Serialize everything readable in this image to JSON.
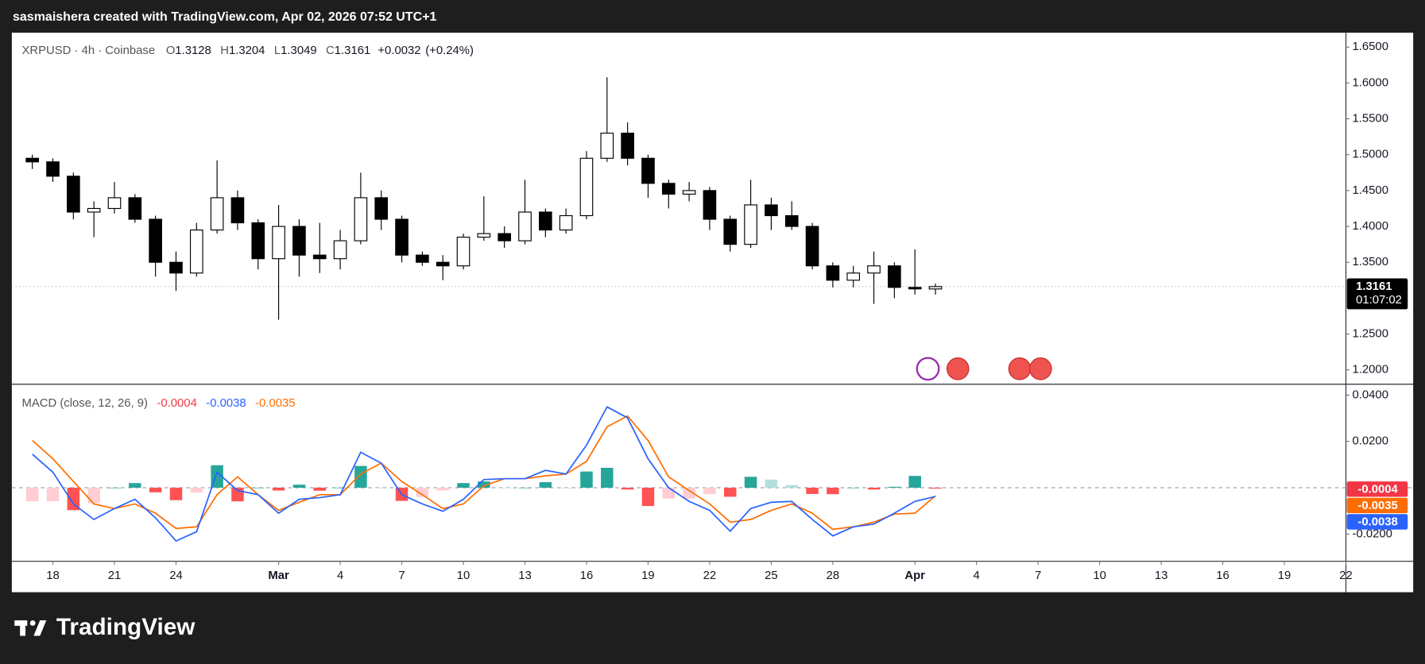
{
  "header": {
    "attribution": "sasmaishera created with TradingView.com, Apr 02, 2026 07:52 UTC+1",
    "logo": "TradingView"
  },
  "chart_data": [
    {
      "type": "candlestick",
      "title": "XRPUSD · 4h · Coinbase",
      "ohlc_labels": [
        "O",
        "H",
        "L",
        "C"
      ],
      "change": "+0.0032",
      "change_pct": "(+0.24%)",
      "countdown": "01:07:02",
      "x": [
        "2026-02-17",
        "2026-02-18",
        "2026-02-19",
        "2026-02-20",
        "2026-02-21",
        "2026-02-22",
        "2026-02-23",
        "2026-02-24",
        "2026-02-25",
        "2026-02-26",
        "2026-02-27",
        "2026-02-28",
        "2026-03-01",
        "2026-03-02",
        "2026-03-03",
        "2026-03-04",
        "2026-03-05",
        "2026-03-06",
        "2026-03-07",
        "2026-03-08",
        "2026-03-09",
        "2026-03-10",
        "2026-03-11",
        "2026-03-12",
        "2026-03-13",
        "2026-03-14",
        "2026-03-15",
        "2026-03-16",
        "2026-03-17",
        "2026-03-18",
        "2026-03-19",
        "2026-03-20",
        "2026-03-21",
        "2026-03-22",
        "2026-03-23",
        "2026-03-24",
        "2026-03-25",
        "2026-03-26",
        "2026-03-27",
        "2026-03-28",
        "2026-03-29",
        "2026-03-30",
        "2026-03-31",
        "2026-04-01",
        "2026-04-02"
      ],
      "open": [
        1.495,
        1.49,
        1.47,
        1.42,
        1.425,
        1.44,
        1.41,
        1.35,
        1.335,
        1.395,
        1.44,
        1.405,
        1.355,
        1.4,
        1.36,
        1.355,
        1.38,
        1.44,
        1.41,
        1.36,
        1.35,
        1.345,
        1.385,
        1.39,
        1.38,
        1.42,
        1.395,
        1.415,
        1.495,
        1.53,
        1.495,
        1.46,
        1.445,
        1.45,
        1.41,
        1.375,
        1.43,
        1.415,
        1.4,
        1.345,
        1.325,
        1.335,
        1.345,
        1.315,
        1.3128
      ],
      "high": [
        1.5,
        1.495,
        1.475,
        1.435,
        1.462,
        1.445,
        1.415,
        1.365,
        1.405,
        1.492,
        1.45,
        1.41,
        1.43,
        1.41,
        1.405,
        1.395,
        1.475,
        1.45,
        1.415,
        1.365,
        1.36,
        1.39,
        1.442,
        1.4,
        1.465,
        1.425,
        1.425,
        1.505,
        1.608,
        1.545,
        1.5,
        1.465,
        1.462,
        1.455,
        1.415,
        1.465,
        1.44,
        1.435,
        1.405,
        1.35,
        1.345,
        1.365,
        1.35,
        1.368,
        1.3204
      ],
      "low": [
        1.48,
        1.462,
        1.41,
        1.385,
        1.418,
        1.405,
        1.33,
        1.31,
        1.33,
        1.39,
        1.395,
        1.34,
        1.27,
        1.33,
        1.335,
        1.34,
        1.375,
        1.395,
        1.35,
        1.345,
        1.325,
        1.34,
        1.38,
        1.37,
        1.375,
        1.385,
        1.39,
        1.41,
        1.49,
        1.485,
        1.44,
        1.425,
        1.435,
        1.395,
        1.365,
        1.37,
        1.395,
        1.395,
        1.34,
        1.315,
        1.315,
        1.292,
        1.3,
        1.305,
        1.3049
      ],
      "close": [
        1.49,
        1.47,
        1.42,
        1.425,
        1.44,
        1.41,
        1.35,
        1.335,
        1.395,
        1.44,
        1.405,
        1.355,
        1.4,
        1.36,
        1.355,
        1.38,
        1.44,
        1.41,
        1.36,
        1.35,
        1.345,
        1.385,
        1.39,
        1.38,
        1.42,
        1.395,
        1.415,
        1.495,
        1.53,
        1.495,
        1.46,
        1.445,
        1.45,
        1.41,
        1.375,
        1.43,
        1.415,
        1.4,
        1.345,
        1.325,
        1.335,
        1.345,
        1.315,
        1.3129,
        1.3161
      ],
      "up_color": "#ffffff",
      "down_color": "#000000",
      "wick_color": "#000000",
      "ylim": [
        1.18,
        1.67
      ],
      "yticks": [
        {
          "value": 1.2,
          "label": "1.2000"
        },
        {
          "value": 1.25,
          "label": "1.2500"
        },
        {
          "value": 1.35,
          "label": "1.3500"
        },
        {
          "value": 1.4,
          "label": "1.4000"
        },
        {
          "value": 1.45,
          "label": "1.4500"
        },
        {
          "value": 1.5,
          "label": "1.5000"
        },
        {
          "value": 1.55,
          "label": "1.5500"
        },
        {
          "value": 1.6,
          "label": "1.6000"
        },
        {
          "value": 1.65,
          "label": "1.6500"
        }
      ],
      "xlim": [
        "2026-02-16",
        "2026-04-22"
      ],
      "xticks": [
        {
          "value": "2026-02-18",
          "label": "18"
        },
        {
          "value": "2026-02-21",
          "label": "21"
        },
        {
          "value": "2026-02-24",
          "label": "24"
        },
        {
          "value": "2026-03-01",
          "label": "Mar"
        },
        {
          "value": "2026-03-04",
          "label": "4"
        },
        {
          "value": "2026-03-07",
          "label": "7"
        },
        {
          "value": "2026-03-10",
          "label": "10"
        },
        {
          "value": "2026-03-13",
          "label": "13"
        },
        {
          "value": "2026-03-16",
          "label": "16"
        },
        {
          "value": "2026-03-19",
          "label": "19"
        },
        {
          "value": "2026-03-22",
          "label": "22"
        },
        {
          "value": "2026-03-25",
          "label": "25"
        },
        {
          "value": "2026-03-28",
          "label": "28"
        },
        {
          "value": "2026-04-01",
          "label": "Apr"
        },
        {
          "value": "2026-04-04",
          "label": "4"
        },
        {
          "value": "2026-04-07",
          "label": "7"
        },
        {
          "value": "2026-04-10",
          "label": "10"
        },
        {
          "value": "2026-04-13",
          "label": "13"
        },
        {
          "value": "2026-04-16",
          "label": "16"
        },
        {
          "value": "2026-04-19",
          "label": "19"
        },
        {
          "value": "2026-04-22",
          "label": "22"
        }
      ]
    },
    {
      "type": "macd",
      "title": "MACD (close, 12, 26, 9)",
      "x": [
        "2026-02-17",
        "2026-02-18",
        "2026-02-19",
        "2026-02-20",
        "2026-02-21",
        "2026-02-22",
        "2026-02-23",
        "2026-02-24",
        "2026-02-25",
        "2026-02-26",
        "2026-02-27",
        "2026-02-28",
        "2026-03-01",
        "2026-03-02",
        "2026-03-03",
        "2026-03-04",
        "2026-03-05",
        "2026-03-06",
        "2026-03-07",
        "2026-03-08",
        "2026-03-09",
        "2026-03-10",
        "2026-03-11",
        "2026-03-12",
        "2026-03-13",
        "2026-03-14",
        "2026-03-15",
        "2026-03-16",
        "2026-03-17",
        "2026-03-18",
        "2026-03-19",
        "2026-03-20",
        "2026-03-21",
        "2026-03-22",
        "2026-03-23",
        "2026-03-24",
        "2026-03-25",
        "2026-03-26",
        "2026-03-27",
        "2026-03-28",
        "2026-03-29",
        "2026-03-30",
        "2026-03-31",
        "2026-04-01",
        "2026-04-02"
      ],
      "histogram": {
        "colors": [
          "#26a69a",
          "#b2dfdb",
          "#ffcdd2",
          "#ff5252"
        ],
        "values": [
          -0.0059,
          -0.0058,
          -0.0097,
          -0.0067,
          0,
          0.002,
          -0.002,
          -0.0054,
          -0.0021,
          0.0097,
          -0.0059,
          0,
          -0.0012,
          0.0013,
          -0.0013,
          0,
          0.0094,
          0,
          -0.0057,
          -0.004,
          -0.0012,
          0.002,
          0.0027,
          0,
          0,
          0.0024,
          0,
          0.007,
          0.0086,
          -0.0008,
          -0.0079,
          -0.0047,
          -0.0047,
          -0.0028,
          -0.0039,
          0.0047,
          0.0035,
          0.0011,
          -0.0027,
          -0.0028,
          0,
          -0.0008,
          0.0004,
          0.0051,
          -0.0004
        ]
      },
      "macd": {
        "color": "#2962ff",
        "values": [
          0.0145,
          0.0067,
          -0.007,
          -0.0137,
          -0.009,
          -0.005,
          -0.013,
          -0.023,
          -0.019,
          0.0067,
          -0.0012,
          -0.003,
          -0.011,
          -0.005,
          -0.0043,
          -0.003,
          0.0153,
          0.0106,
          -0.003,
          -0.007,
          -0.0102,
          -0.005,
          0.0035,
          0.0039,
          0.0039,
          0.0075,
          0.0059,
          0.0184,
          0.0349,
          0.0302,
          0.0125,
          0,
          -0.0059,
          -0.0098,
          -0.0188,
          -0.009,
          -0.0063,
          -0.0059,
          -0.0137,
          -0.0208,
          -0.0169,
          -0.0157,
          -0.011,
          -0.0059,
          -0.0038
        ]
      },
      "signal": {
        "color": "#ff6d00",
        "values": [
          0.0204,
          0.0125,
          0.0027,
          -0.007,
          -0.009,
          -0.007,
          -0.011,
          -0.0176,
          -0.0169,
          -0.003,
          0.0047,
          -0.003,
          -0.0098,
          -0.0063,
          -0.003,
          -0.003,
          0.0059,
          0.0106,
          0.0027,
          -0.003,
          -0.009,
          -0.007,
          0.0008,
          0.0039,
          0.0039,
          0.0051,
          0.0059,
          0.0114,
          0.0263,
          0.031,
          0.0204,
          0.0047,
          -0.0012,
          -0.007,
          -0.0149,
          -0.0137,
          -0.0098,
          -0.007,
          -0.011,
          -0.018,
          -0.0169,
          -0.0149,
          -0.0114,
          -0.011,
          -0.0035
        ]
      },
      "ylim": [
        -0.0318,
        0.0447
      ],
      "yticks": [
        {
          "value": -0.02,
          "label": "-0.0200"
        },
        {
          "value": 0.02,
          "label": "0.0200"
        },
        {
          "value": 0.04,
          "label": "0.0400"
        }
      ]
    }
  ]
}
